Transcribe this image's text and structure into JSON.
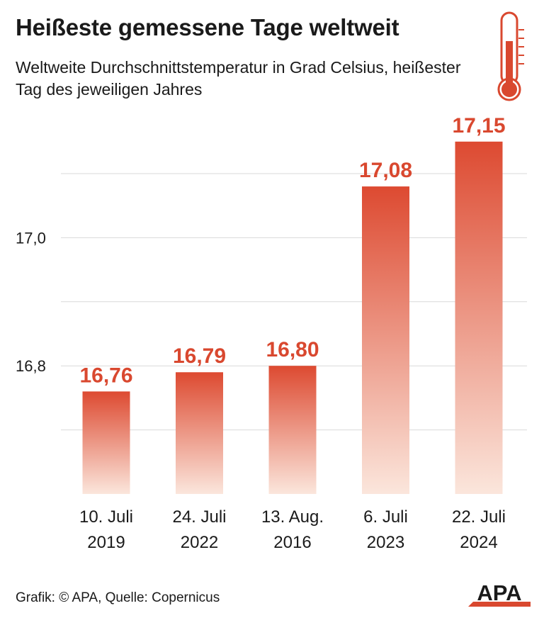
{
  "header": {
    "title": "Heißeste gemessene Tage weltweit",
    "subtitle": "Weltweite Durchschnittstemperatur in Grad Celsius, heißester Tag des jeweiligen Jahres"
  },
  "footer": {
    "source": "Grafik: © APA, Quelle: Copernicus",
    "logo_text": "APA"
  },
  "icons": {
    "thermometer": "thermometer-icon",
    "logo": "apa-logo"
  },
  "colors": {
    "bar_top": "#dd4a31",
    "bar_bottom": "#fbe6dc",
    "value_label": "#d9482f",
    "gridline": "#d9d9d9",
    "text": "#1a1a1a"
  },
  "chart_data": {
    "type": "bar",
    "categories": [
      [
        "10. Juli",
        "2019"
      ],
      [
        "24. Juli",
        "2022"
      ],
      [
        "13. Aug.",
        "2016"
      ],
      [
        "6. Juli",
        "2023"
      ],
      [
        "22. Juli",
        "2024"
      ]
    ],
    "values": [
      16.76,
      16.79,
      16.8,
      17.08,
      17.15
    ],
    "value_labels": [
      "16,76",
      "16,79",
      "16,80",
      "17,08",
      "17,15"
    ],
    "ylim": [
      16.6,
      17.2
    ],
    "gridlines": [
      16.7,
      16.8,
      16.9,
      17.0,
      17.1
    ],
    "yticks": [
      {
        "value": 16.8,
        "label": "16,8"
      },
      {
        "value": 17.0,
        "label": "17,0"
      }
    ],
    "grid": true,
    "legend": "none"
  }
}
